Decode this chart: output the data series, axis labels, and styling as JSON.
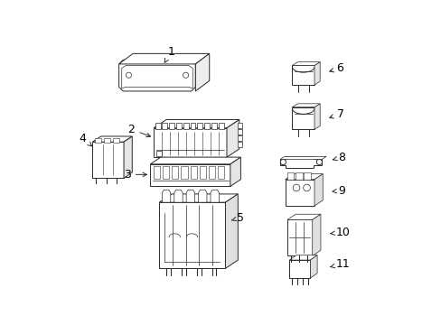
{
  "bg_color": "#ffffff",
  "line_color": "#2a2a2a",
  "label_color": "#000000",
  "label_fontsize": 9,
  "fig_width": 4.89,
  "fig_height": 3.6,
  "dpi": 100
}
